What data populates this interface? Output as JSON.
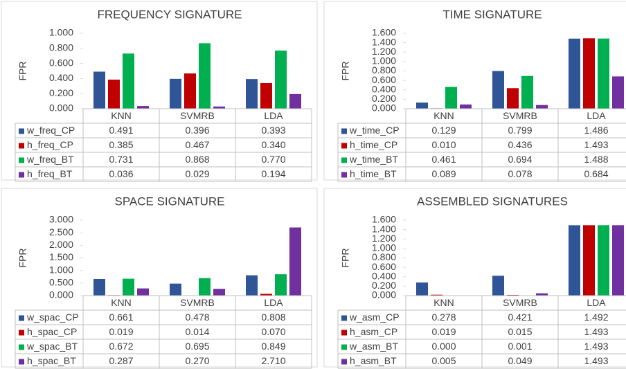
{
  "chart_data": [
    {
      "type": "bar",
      "title": "FREQUENCY SIGNATURE",
      "y_label": "FPR",
      "categories": [
        "KNN",
        "SVMRB",
        "LDA"
      ],
      "series": [
        {
          "name": "w_freq_CP",
          "color": "#2f5597",
          "values": [
            0.491,
            0.396,
            0.393
          ],
          "value_labels": [
            "0.491",
            "0.396",
            "0.393"
          ]
        },
        {
          "name": "h_freq_CP",
          "color": "#c00000",
          "values": [
            0.385,
            0.467,
            0.34
          ],
          "value_labels": [
            "0.385",
            "0.467",
            "0.340"
          ]
        },
        {
          "name": "w_freq_BT",
          "color": "#00b050",
          "values": [
            0.731,
            0.868,
            0.77
          ],
          "value_labels": [
            "0.731",
            "0.868",
            "0.770"
          ]
        },
        {
          "name": "h_freq_BT",
          "color": "#7030a0",
          "values": [
            0.036,
            0.029,
            0.194
          ],
          "value_labels": [
            "0.036",
            "0.029",
            "0.194"
          ]
        }
      ],
      "ylim": [
        0,
        1
      ],
      "yticks": [
        {
          "value": 0,
          "label": "0.000"
        },
        {
          "value": 0.2,
          "label": "0.200"
        },
        {
          "value": 0.4,
          "label": "0.400"
        },
        {
          "value": 0.6,
          "label": "0.600"
        },
        {
          "value": 0.8,
          "label": "0.800"
        },
        {
          "value": 1,
          "label": "1.000"
        }
      ]
    },
    {
      "type": "bar",
      "title": "TIME SIGNATURE",
      "y_label": "FPR",
      "categories": [
        "KNN",
        "SVMRB",
        "LDA"
      ],
      "series": [
        {
          "name": "w_time_CP",
          "color": "#2f5597",
          "values": [
            0.129,
            0.799,
            1.486
          ],
          "value_labels": [
            "0.129",
            "0.799",
            "1.486"
          ]
        },
        {
          "name": "h_time_CP",
          "color": "#c00000",
          "values": [
            0.01,
            0.436,
            1.493
          ],
          "value_labels": [
            "0.010",
            "0.436",
            "1.493"
          ]
        },
        {
          "name": "w_time_BT",
          "color": "#00b050",
          "values": [
            0.461,
            0.694,
            1.488
          ],
          "value_labels": [
            "0.461",
            "0.694",
            "1.488"
          ]
        },
        {
          "name": "h_time_BT",
          "color": "#7030a0",
          "values": [
            0.089,
            0.078,
            0.684
          ],
          "value_labels": [
            "0.089",
            "0.078",
            "0.684"
          ]
        }
      ],
      "ylim": [
        0,
        1.6
      ],
      "yticks": [
        {
          "value": 0,
          "label": "0.000"
        },
        {
          "value": 0.2,
          "label": "0.200"
        },
        {
          "value": 0.4,
          "label": "0.400"
        },
        {
          "value": 0.6,
          "label": "0.600"
        },
        {
          "value": 0.8,
          "label": "0.800"
        },
        {
          "value": 1,
          "label": "1.000"
        },
        {
          "value": 1.2,
          "label": "1.200"
        },
        {
          "value": 1.4,
          "label": "1.400"
        },
        {
          "value": 1.6,
          "label": "1.600"
        }
      ]
    },
    {
      "type": "bar",
      "title": "SPACE SIGNATURE",
      "y_label": "FPR",
      "categories": [
        "KNN",
        "SVMRB",
        "LDA"
      ],
      "series": [
        {
          "name": "w_spac_CP",
          "color": "#2f5597",
          "values": [
            0.661,
            0.478,
            0.808
          ],
          "value_labels": [
            "0.661",
            "0.478",
            "0.808"
          ]
        },
        {
          "name": "h_spac_CP",
          "color": "#c00000",
          "values": [
            0.019,
            0.014,
            0.07
          ],
          "value_labels": [
            "0.019",
            "0.014",
            "0.070"
          ]
        },
        {
          "name": "w_spac_BT",
          "color": "#00b050",
          "values": [
            0.672,
            0.695,
            0.849
          ],
          "value_labels": [
            "0.672",
            "0.695",
            "0.849"
          ]
        },
        {
          "name": "h_spac_BT",
          "color": "#7030a0",
          "values": [
            0.287,
            0.27,
            2.71
          ],
          "value_labels": [
            "0.287",
            "0.270",
            "2.710"
          ]
        }
      ],
      "ylim": [
        0,
        3
      ],
      "yticks": [
        {
          "value": 0,
          "label": "0.000"
        },
        {
          "value": 0.5,
          "label": "0.500"
        },
        {
          "value": 1,
          "label": "1.000"
        },
        {
          "value": 1.5,
          "label": "1.500"
        },
        {
          "value": 2,
          "label": "2.000"
        },
        {
          "value": 2.5,
          "label": "2.500"
        },
        {
          "value": 3,
          "label": "3.000"
        }
      ]
    },
    {
      "type": "bar",
      "title": "ASSEMBLED SIGNATURES",
      "y_label": "FPR",
      "categories": [
        "KNN",
        "SVMRB",
        "LDA"
      ],
      "series": [
        {
          "name": "w_asm_CP",
          "color": "#2f5597",
          "values": [
            0.278,
            0.421,
            1.492
          ],
          "value_labels": [
            "0.278",
            "0.421",
            "1.492"
          ]
        },
        {
          "name": "h_asm_CP",
          "color": "#c00000",
          "values": [
            0.019,
            0.015,
            1.493
          ],
          "value_labels": [
            "0.019",
            "0.015",
            "1.493"
          ]
        },
        {
          "name": "w_asm_BT",
          "color": "#00b050",
          "values": [
            0,
            0.001,
            1.493
          ],
          "value_labels": [
            "0.000",
            "0.001",
            "1.493"
          ]
        },
        {
          "name": "h_asm_BT",
          "color": "#7030a0",
          "values": [
            0.005,
            0.049,
            1.493
          ],
          "value_labels": [
            "0.005",
            "0.049",
            "1.493"
          ]
        }
      ],
      "ylim": [
        0,
        1.6
      ],
      "yticks": [
        {
          "value": 0,
          "label": "0.000"
        },
        {
          "value": 0.2,
          "label": "0.200"
        },
        {
          "value": 0.4,
          "label": "0.400"
        },
        {
          "value": 0.6,
          "label": "0.600"
        },
        {
          "value": 0.8,
          "label": "0.800"
        },
        {
          "value": 1,
          "label": "1.000"
        },
        {
          "value": 1.2,
          "label": "1.200"
        },
        {
          "value": 1.4,
          "label": "1.400"
        },
        {
          "value": 1.6,
          "label": "1.600"
        }
      ]
    }
  ]
}
